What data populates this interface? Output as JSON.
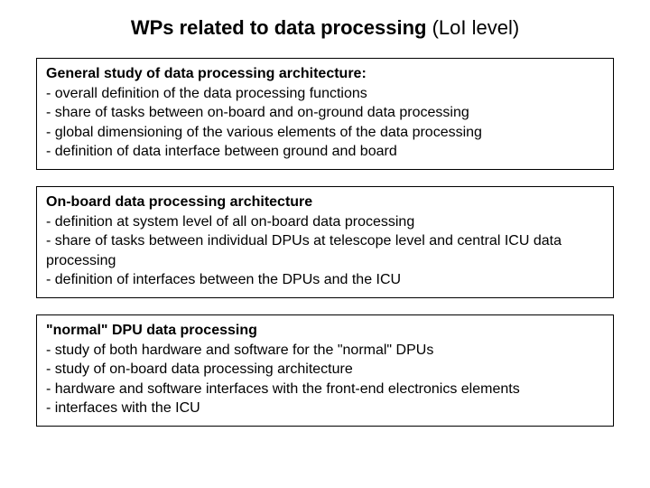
{
  "title": {
    "bold": "WPs related to data processing",
    "normal": " (LoI level)"
  },
  "boxes": [
    {
      "heading": "General study of data processing architecture:",
      "lines": [
        "- overall definition of the data processing functions",
        "- share of tasks between on-board and on-ground data processing",
        "- global dimensioning of the various elements of the data processing",
        "- definition of data interface between ground and board"
      ]
    },
    {
      "heading": "On-board data processing architecture",
      "lines": [
        "- definition at system level of all on-board data processing",
        "- share of tasks between individual DPUs at telescope level and central ICU data processing",
        "- definition of interfaces between the DPUs and the ICU"
      ]
    },
    {
      "heading": "\"normal\" DPU data processing",
      "lines": [
        "- study of both hardware and software for the \"normal\" DPUs",
        "- study of on-board data processing architecture",
        "- hardware and software interfaces with the front-end electronics elements",
        "- interfaces with the ICU"
      ]
    }
  ],
  "colors": {
    "background": "#ffffff",
    "text": "#000000",
    "border": "#000000"
  },
  "typography": {
    "title_fontsize": 22,
    "body_fontsize": 16,
    "font_family": "Arial"
  }
}
